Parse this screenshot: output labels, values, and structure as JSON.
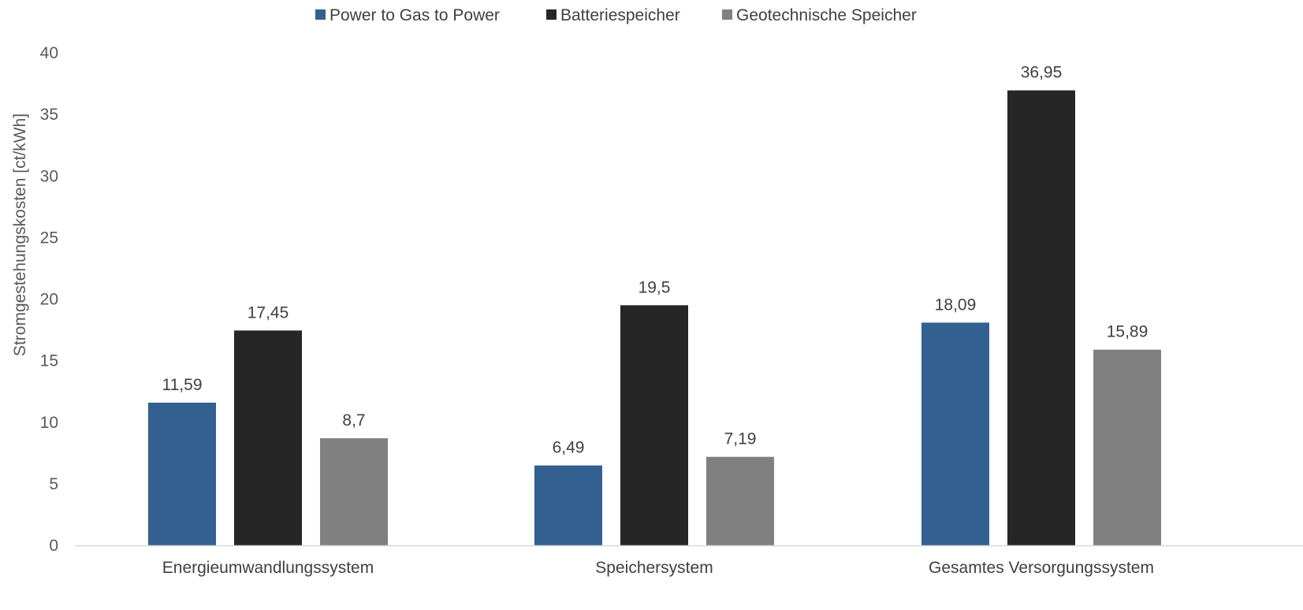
{
  "chart_data": {
    "type": "bar",
    "title": "",
    "xlabel": "",
    "ylabel": "Stromgestehungskosten [ct/kWh]",
    "ylim": [
      0,
      40
    ],
    "yticks": [
      0,
      5,
      10,
      15,
      20,
      25,
      30,
      35,
      40
    ],
    "grid": false,
    "legend_position": "top",
    "categories": [
      "Energieumwandlungssystem",
      "Speichersystem",
      "Gesamtes Versorgungssystem"
    ],
    "series": [
      {
        "name": "Power to Gas to Power",
        "color": "#335F91",
        "values": [
          11.59,
          6.49,
          18.09
        ],
        "labels": [
          "11,59",
          "6,49",
          "18,09"
        ]
      },
      {
        "name": "Batteriespeicher",
        "color": "#262626",
        "values": [
          17.45,
          19.5,
          36.95
        ],
        "labels": [
          "17,45",
          "19,5",
          "36,95"
        ]
      },
      {
        "name": "Geotechnische Speicher",
        "color": "#808080",
        "values": [
          8.7,
          7.19,
          15.89
        ],
        "labels": [
          "8,7",
          "7,19",
          "15,89"
        ]
      }
    ],
    "colors": {
      "axis": "#D9D9D9",
      "tick_text": "#595959",
      "label_text": "#404040"
    }
  }
}
